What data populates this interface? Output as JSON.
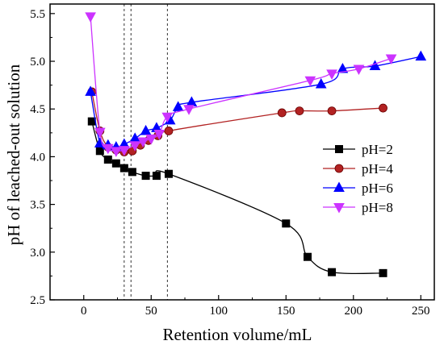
{
  "chart_data": {
    "type": "line",
    "xlabel": "Retention volume/mL",
    "ylabel": "pH of leached-out solution",
    "xlim": [
      -25,
      260
    ],
    "ylim": [
      2.5,
      5.6
    ],
    "xticks": [
      "0",
      "50",
      "100",
      "150",
      "200",
      "250"
    ],
    "yticks": [
      "2.5",
      "3.0",
      "3.5",
      "4.0",
      "4.5",
      "5.0",
      "5.5"
    ],
    "xtick_values": [
      0,
      50,
      100,
      150,
      200,
      250
    ],
    "ytick_values": [
      2.5,
      3.0,
      3.5,
      4.0,
      4.5,
      5.0,
      5.5
    ],
    "reference_lines_x": [
      30,
      35,
      62
    ],
    "grid": false,
    "legend_position": "right",
    "series": [
      {
        "name": "pH=2",
        "color": "#000000",
        "marker": "square",
        "x": [
          6,
          12,
          18,
          24,
          30,
          36,
          46,
          54,
          63,
          150,
          166,
          184,
          222
        ],
        "y": [
          4.37,
          4.06,
          3.97,
          3.93,
          3.88,
          3.84,
          3.8,
          3.8,
          3.82,
          3.3,
          2.95,
          2.79,
          2.78
        ]
      },
      {
        "name": "pH=4",
        "color": "#b22222",
        "marker": "circle",
        "x": [
          6,
          12,
          18,
          24,
          30,
          36,
          42,
          48,
          55,
          63,
          147,
          160,
          184,
          222
        ],
        "y": [
          4.68,
          4.27,
          4.1,
          4.07,
          4.05,
          4.06,
          4.12,
          4.17,
          4.22,
          4.27,
          4.46,
          4.48,
          4.48,
          4.51
        ]
      },
      {
        "name": "pH=6",
        "color": "#0000ff",
        "marker": "triangle-up",
        "x": [
          5,
          12,
          18,
          24,
          30,
          38,
          46,
          54,
          64,
          70,
          80,
          176,
          192,
          216,
          250
        ],
        "y": [
          4.68,
          4.14,
          4.12,
          4.1,
          4.13,
          4.19,
          4.27,
          4.3,
          4.38,
          4.52,
          4.57,
          4.76,
          4.92,
          4.95,
          5.05
        ]
      },
      {
        "name": "pH=8",
        "color": "#cc33ff",
        "marker": "triangle-down",
        "x": [
          5,
          12,
          18,
          24,
          30,
          38,
          44,
          50,
          56,
          62,
          78,
          168,
          184,
          204,
          228
        ],
        "y": [
          5.47,
          4.26,
          4.09,
          4.06,
          4.07,
          4.12,
          4.16,
          4.19,
          4.24,
          4.42,
          4.5,
          4.8,
          4.87,
          4.92,
          5.03
        ]
      }
    ]
  }
}
